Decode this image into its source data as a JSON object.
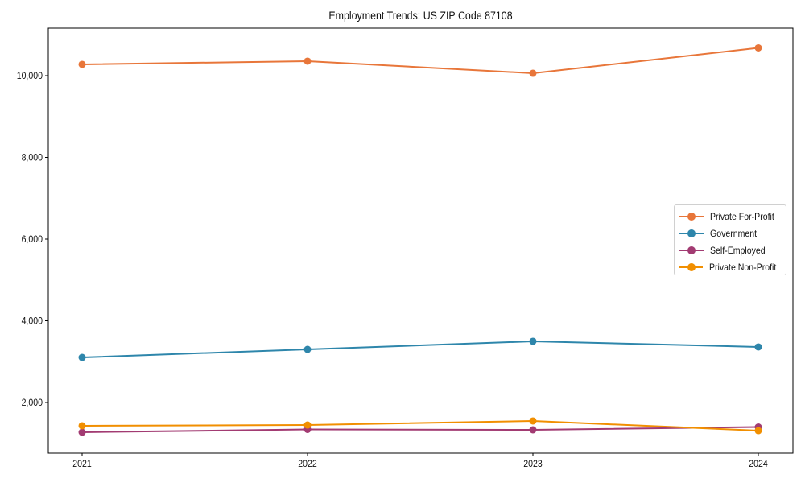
{
  "chart_data": {
    "type": "line",
    "title": "Employment Trends: US ZIP Code 87108",
    "xlabel": "",
    "ylabel": "",
    "categories": [
      "2021",
      "2022",
      "2023",
      "2024"
    ],
    "yticks": [
      "2,000",
      "4,000",
      "6,000",
      "8,000",
      "10,000"
    ],
    "ylim": [
      800,
      11200
    ],
    "grid": false,
    "legend_position": "center right",
    "series": [
      {
        "name": "Private For-Profit",
        "color": "#E8763A",
        "values": [
          10276,
          10355,
          10059,
          10680
        ]
      },
      {
        "name": "Government",
        "color": "#2E86AB",
        "values": [
          3103,
          3300,
          3498,
          3360
        ]
      },
      {
        "name": "Self-Employed",
        "color": "#A23B72",
        "values": [
          1271,
          1340,
          1330,
          1399
        ]
      },
      {
        "name": "Private Non-Profit",
        "color": "#F18F01",
        "values": [
          1429,
          1448,
          1547,
          1310
        ]
      }
    ]
  }
}
